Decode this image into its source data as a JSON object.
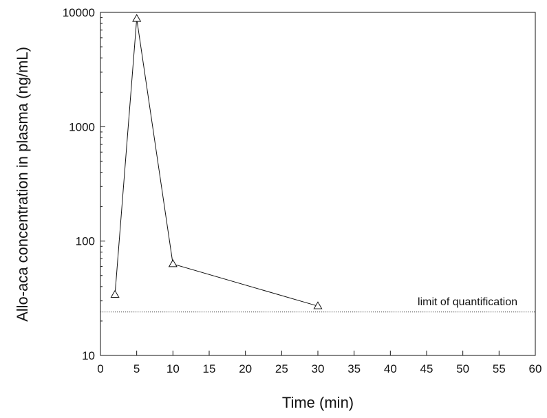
{
  "chart_data": {
    "type": "line",
    "title": "",
    "xlabel": "Time (min)",
    "ylabel": "Allo-aca concentration in plasma (ng/mL)",
    "xlim": [
      0,
      60
    ],
    "ylim": [
      10,
      10000
    ],
    "yscale": "log",
    "grid": false,
    "x_ticks": [
      "0",
      "5",
      "10",
      "15",
      "20",
      "25",
      "30",
      "35",
      "40",
      "45",
      "50",
      "55",
      "60"
    ],
    "y_ticks": [
      "10",
      "100",
      "1000",
      "10000"
    ],
    "series": [
      {
        "marker": "open-triangle",
        "color": "#111111",
        "x": [
          2,
          5,
          10,
          30
        ],
        "y": [
          34,
          8800,
          63,
          27
        ]
      }
    ],
    "annotations": [
      {
        "text": "limit of quantification",
        "y": 24,
        "style": "dotted-line"
      }
    ]
  }
}
